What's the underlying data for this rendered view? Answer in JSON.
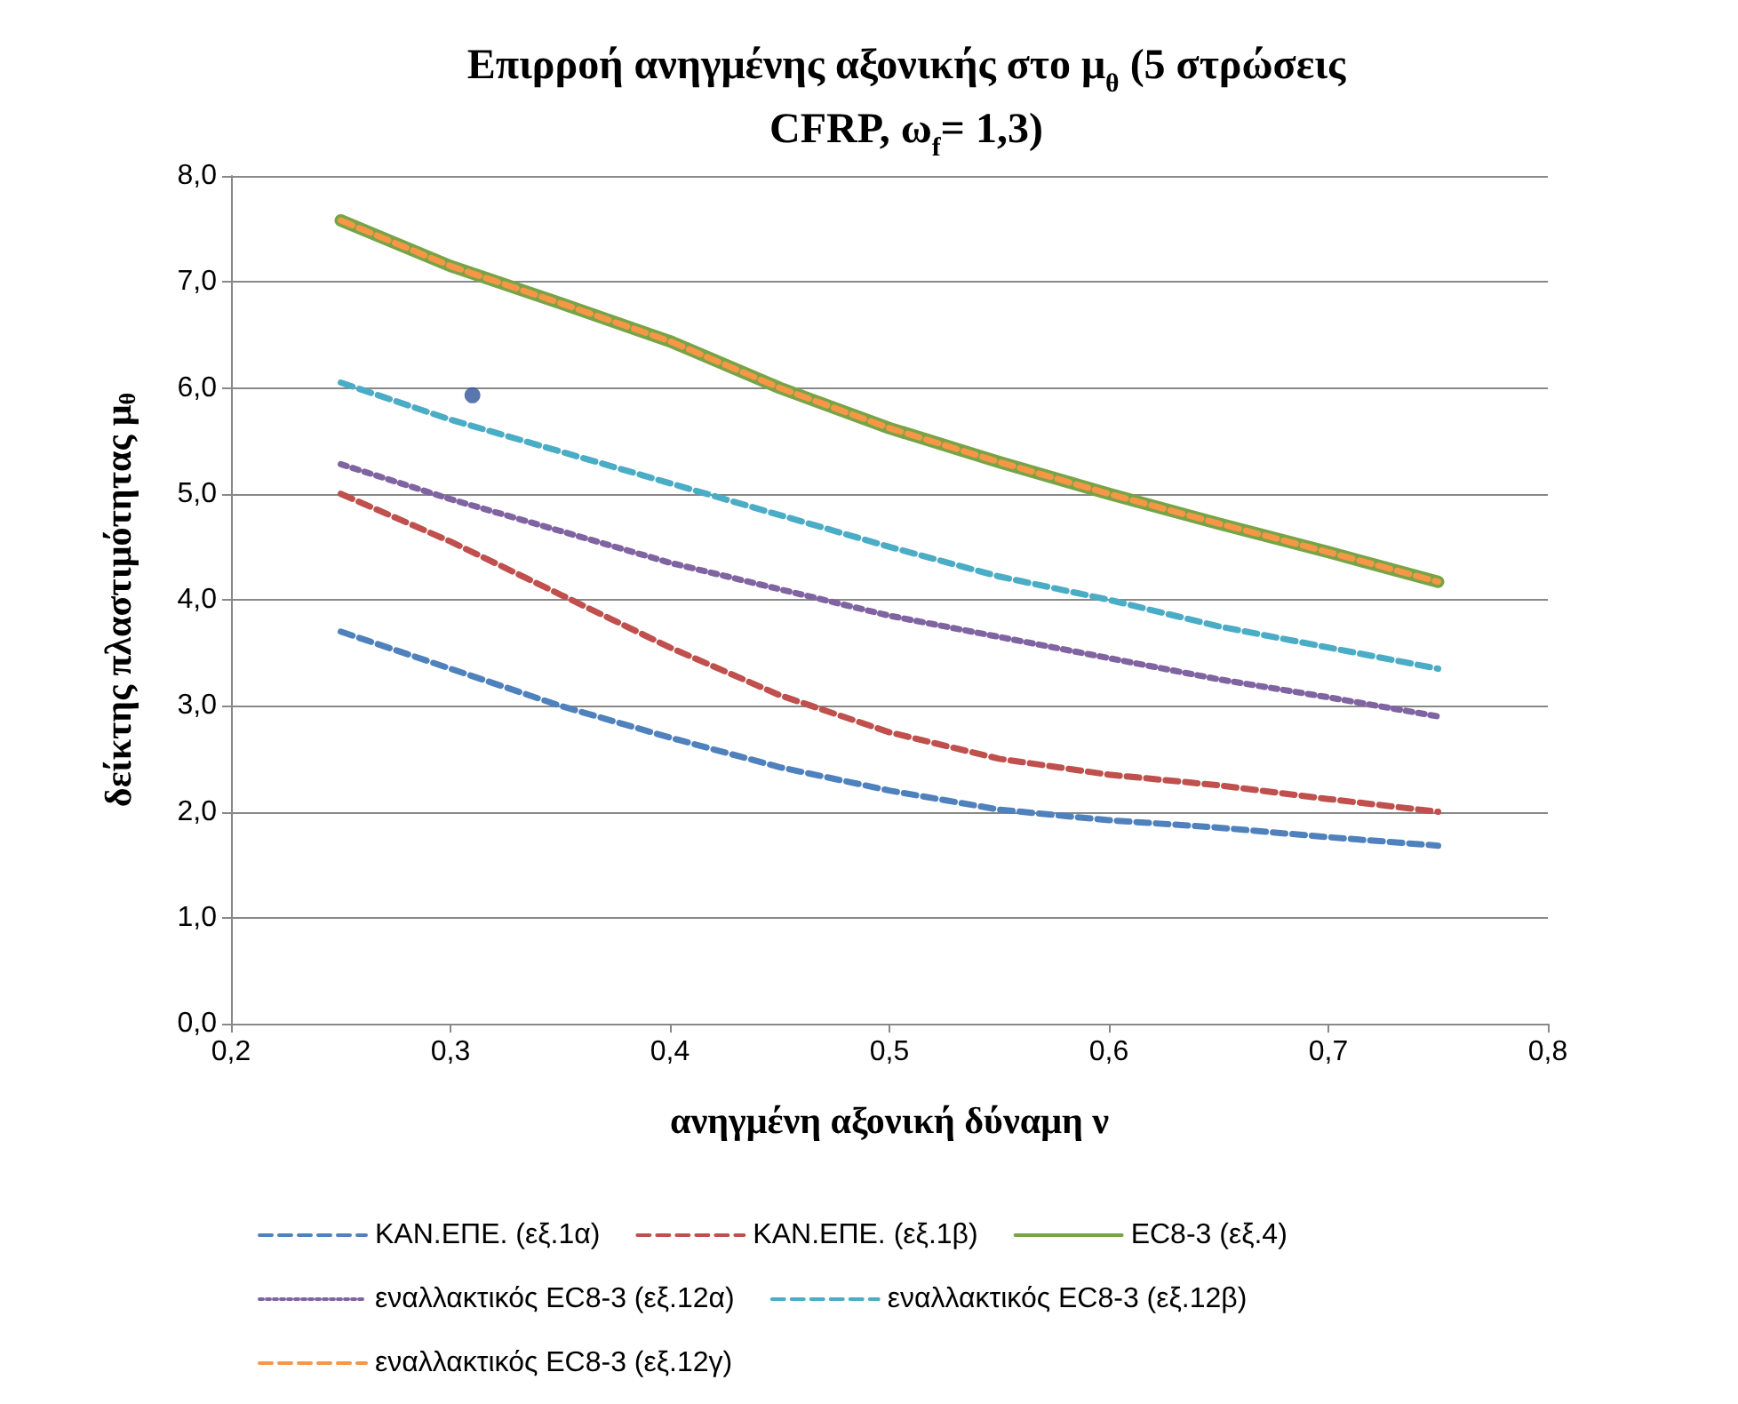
{
  "chart_data": {
    "type": "line",
    "title": "Επιρροή ανηγμένης αξονικής στο μ$_{θ}$ (5 στρώσεις CFRP, ω$_{f}$= 1,3)",
    "xlabel": "ανηγμένη αξονική δύναμη ν",
    "ylabel": "δείκτης πλαστιμότητας μ$_{θ}$",
    "x": [
      0.25,
      0.3,
      0.35,
      0.4,
      0.45,
      0.5,
      0.55,
      0.6,
      0.65,
      0.7,
      0.75
    ],
    "series": [
      {
        "name": "ΚΑΝ.ΕΠΕ. (εξ.1α)",
        "color": "#4f81bd",
        "line_style": "dashed",
        "values": [
          3.7,
          3.35,
          3.0,
          2.7,
          2.42,
          2.2,
          2.02,
          1.92,
          1.85,
          1.76,
          1.68
        ]
      },
      {
        "name": "ΚΑΝ.ΕΠΕ. (εξ.1β)",
        "color": "#c0504d",
        "line_style": "dashed",
        "values": [
          5.0,
          4.55,
          4.05,
          3.55,
          3.1,
          2.75,
          2.5,
          2.35,
          2.25,
          2.12,
          2.0
        ]
      },
      {
        "name": "EC8-3 (εξ.4)",
        "color": "#77a446",
        "line_style": "solid",
        "values": [
          7.58,
          7.15,
          6.8,
          6.44,
          6.0,
          5.62,
          5.3,
          5.0,
          4.72,
          4.45,
          4.17
        ]
      },
      {
        "name": "εναλλακτικός EC8-3 (εξ.12α)",
        "color": "#8064a2",
        "line_style": "dotted",
        "values": [
          5.28,
          4.95,
          4.65,
          4.35,
          4.1,
          3.85,
          3.65,
          3.45,
          3.25,
          3.08,
          2.9
        ]
      },
      {
        "name": "εναλλακτικός EC8-3 (εξ.12β)",
        "color": "#4bacc6",
        "line_style": "dashed",
        "values": [
          6.05,
          5.7,
          5.4,
          5.1,
          4.8,
          4.5,
          4.22,
          4.0,
          3.75,
          3.55,
          3.35
        ]
      },
      {
        "name": "εναλλακτικός EC8-3 (εξ.12γ)",
        "color": "#f79646",
        "line_style": "dashed",
        "values": [
          7.58,
          7.15,
          6.8,
          6.44,
          6.0,
          5.62,
          5.3,
          5.0,
          4.72,
          4.45,
          4.17
        ]
      },
      {
        "type": "scatter",
        "color": "#2f5597",
        "marker": "circle",
        "x": [
          0.31
        ],
        "values": [
          5.93
        ]
      }
    ],
    "xlim": [
      0.2,
      0.8
    ],
    "xticks": [
      {
        "value": 0.2,
        "label": "0,2"
      },
      {
        "value": 0.3,
        "label": "0,3"
      },
      {
        "value": 0.4,
        "label": "0,4"
      },
      {
        "value": 0.5,
        "label": "0,5"
      },
      {
        "value": 0.6,
        "label": "0,6"
      },
      {
        "value": 0.7,
        "label": "0,7"
      },
      {
        "value": 0.8,
        "label": "0,8"
      }
    ],
    "ylim": [
      0,
      8
    ],
    "yticks": [
      {
        "value": 0,
        "label": "0,0"
      },
      {
        "value": 1,
        "label": "1,0"
      },
      {
        "value": 2,
        "label": "2,0"
      },
      {
        "value": 3,
        "label": "3,0"
      },
      {
        "value": 4,
        "label": "4,0"
      },
      {
        "value": 5,
        "label": "5,0"
      },
      {
        "value": 6,
        "label": "6,0"
      },
      {
        "value": 7,
        "label": "7,0"
      },
      {
        "value": 8,
        "label": "8,0"
      }
    ],
    "grid": "y",
    "legend": "bottom"
  }
}
